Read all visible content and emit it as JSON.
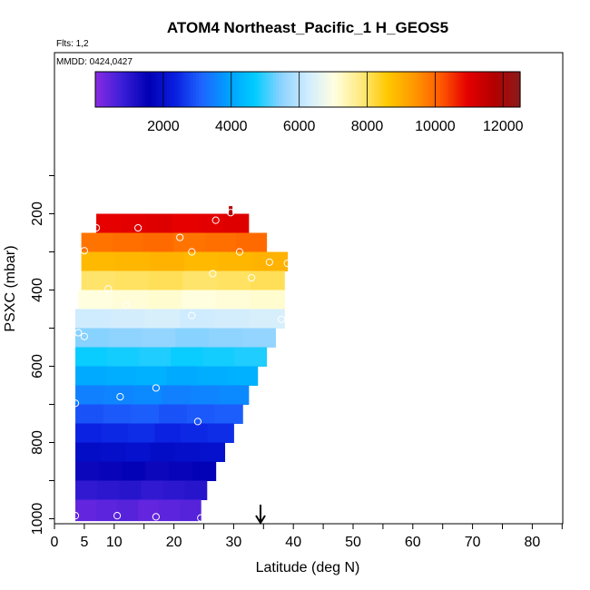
{
  "chart_data": {
    "type": "heatmap",
    "title": "ATOM4 Northeast_Pacific_1 H_GEOS5",
    "flights_label": "Flts: 1,2",
    "dates_label": "MMDD: 0424,0427",
    "xlabel": "Latitude (deg N)",
    "ylabel": "PSXC (mbar)",
    "xlim": [
      0,
      85
    ],
    "ylim": [
      1010,
      50
    ],
    "x_ticks": [
      0,
      5,
      10,
      20,
      30,
      40,
      50,
      60,
      70,
      80
    ],
    "y_ticks": [
      200,
      400,
      600,
      800,
      1000
    ],
    "colorbar": {
      "min": 0,
      "max": 12500,
      "ticks": [
        2000,
        4000,
        6000,
        8000,
        10000,
        12000
      ],
      "colors": [
        "#8a2be2",
        "#3b1fd8",
        "#0000b4",
        "#0a1ee0",
        "#1e64ff",
        "#00a0ff",
        "#00ccff",
        "#8cd2ff",
        "#d0ecff",
        "#ffffe0",
        "#ffea80",
        "#ffc800",
        "#ff9900",
        "#ff5a00",
        "#e60000",
        "#b40000",
        "#8b1a1a"
      ],
      "lines": [
        2000,
        4000,
        6000,
        8000,
        10000,
        12000
      ]
    },
    "rows": [
      {
        "p_top": 200,
        "p_bot": 250,
        "lat_min": 7,
        "lat_max": 32.5,
        "value": 11000
      },
      {
        "p_top": 250,
        "p_bot": 300,
        "lat_min": 4.5,
        "lat_max": 35.5,
        "value": 9900
      },
      {
        "p_top": 300,
        "p_bot": 350,
        "lat_min": 4.5,
        "lat_max": 39,
        "value": 8900
      },
      {
        "p_top": 350,
        "p_bot": 400,
        "lat_min": 4.5,
        "lat_max": 38.5,
        "value": 8000
      },
      {
        "p_top": 400,
        "p_bot": 450,
        "lat_min": 4,
        "lat_max": 38.5,
        "value": 7100
      },
      {
        "p_top": 450,
        "p_bot": 500,
        "lat_min": 3.5,
        "lat_max": 38.5,
        "value": 6300
      },
      {
        "p_top": 500,
        "p_bot": 550,
        "lat_min": 3.5,
        "lat_max": 37,
        "value": 5500
      },
      {
        "p_top": 550,
        "p_bot": 600,
        "lat_min": 3.5,
        "lat_max": 35.5,
        "value": 4800
      },
      {
        "p_top": 600,
        "p_bot": 650,
        "lat_min": 3.5,
        "lat_max": 34,
        "value": 4150
      },
      {
        "p_top": 650,
        "p_bot": 700,
        "lat_min": 3.5,
        "lat_max": 32.5,
        "value": 3550
      },
      {
        "p_top": 700,
        "p_bot": 750,
        "lat_min": 3.5,
        "lat_max": 31.5,
        "value": 3000
      },
      {
        "p_top": 750,
        "p_bot": 800,
        "lat_min": 3.5,
        "lat_max": 30,
        "value": 2450
      },
      {
        "p_top": 800,
        "p_bot": 850,
        "lat_min": 3.5,
        "lat_max": 28.5,
        "value": 1950
      },
      {
        "p_top": 850,
        "p_bot": 900,
        "lat_min": 3.5,
        "lat_max": 27,
        "value": 1450
      },
      {
        "p_top": 900,
        "p_bot": 950,
        "lat_min": 3.5,
        "lat_max": 25.5,
        "value": 980
      },
      {
        "p_top": 950,
        "p_bot": 1005,
        "lat_min": 3.5,
        "lat_max": 24.5,
        "value": 450
      }
    ],
    "top_spike": {
      "lat": 29.5,
      "p_top": 180,
      "p_bot": 205,
      "value": 11700
    },
    "points": [
      {
        "lat": 7,
        "p": 237
      },
      {
        "lat": 14,
        "p": 237
      },
      {
        "lat": 21,
        "p": 262
      },
      {
        "lat": 27,
        "p": 217
      },
      {
        "lat": 29.5,
        "p": 197
      },
      {
        "lat": 5,
        "p": 297
      },
      {
        "lat": 23,
        "p": 300
      },
      {
        "lat": 31,
        "p": 300
      },
      {
        "lat": 36,
        "p": 327
      },
      {
        "lat": 39,
        "p": 330
      },
      {
        "lat": 26.5,
        "p": 357
      },
      {
        "lat": 33,
        "p": 368
      },
      {
        "lat": 9,
        "p": 397
      },
      {
        "lat": 12,
        "p": 440
      },
      {
        "lat": 23,
        "p": 467
      },
      {
        "lat": 38,
        "p": 477
      },
      {
        "lat": 4,
        "p": 512
      },
      {
        "lat": 5,
        "p": 522
      },
      {
        "lat": 17,
        "p": 657
      },
      {
        "lat": 11,
        "p": 680
      },
      {
        "lat": 3.5,
        "p": 697
      },
      {
        "lat": 24,
        "p": 745
      },
      {
        "lat": 3.5,
        "p": 992
      },
      {
        "lat": 10.5,
        "p": 992
      },
      {
        "lat": 17,
        "p": 995
      },
      {
        "lat": 24.5,
        "p": 998
      }
    ],
    "arrow_lat": 34.5
  }
}
